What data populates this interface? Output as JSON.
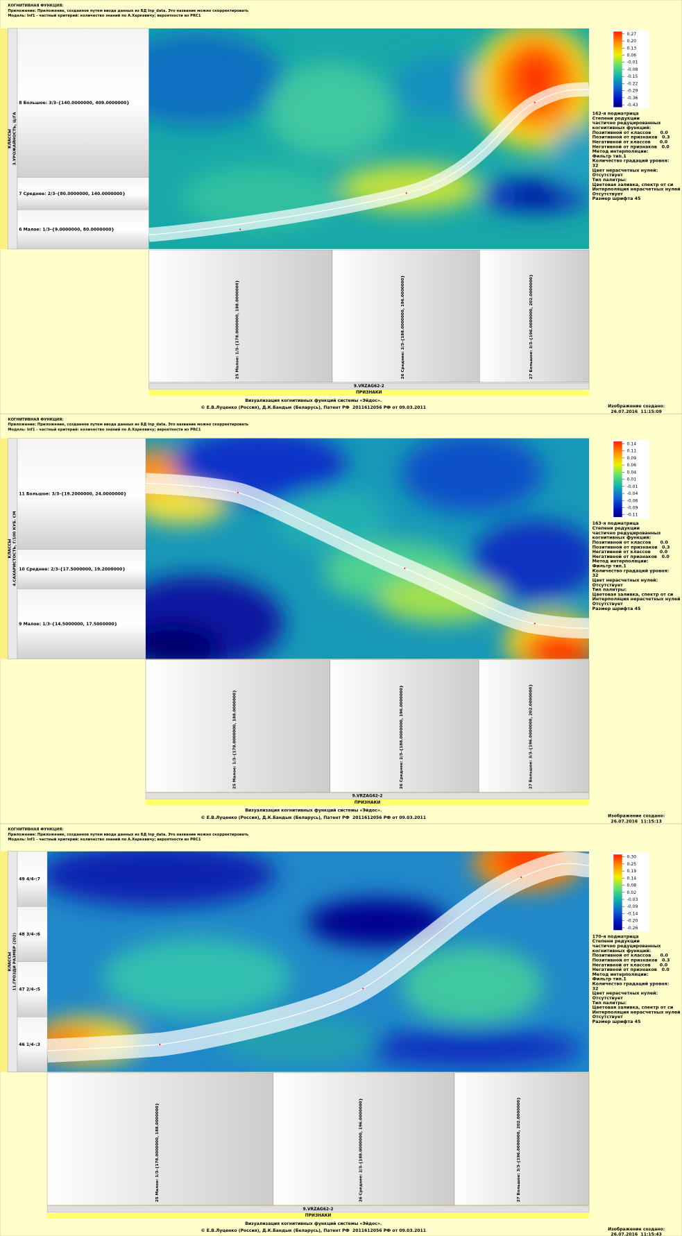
{
  "panels": [
    {
      "header": {
        "title": "КОГНИТИВНАЯ ФУНКЦИЯ:",
        "app": "Приложение: Приложение, созданное путем ввода данных из БД Inp_data. Это название можно скорректировать",
        "model": "Модель: Inf1 - частный критерий: количество знаний по А.Харкевичу; вероятности из PRC1"
      },
      "class_axis": {
        "title": "КЛАССЫ",
        "name": "3.УРОЖАЙНОСТЬ, Ц/ГА"
      },
      "classes": [
        "8 Большое: 3/3-{140.0000000, 409.0000000}",
        "7 Среднее: 2/3-{80.0000000, 140.0000000}",
        "6 Малое: 1/3-{9.0000000, 80.0000000}"
      ],
      "features": [
        "25 Малое: 1/3-{178.0000000, 188.0000000}",
        "26 Среднее: 2/3-{188.0000000, 196.0000000}",
        "27 Большое: 3/3-{196.0000000, 202.0000000}"
      ],
      "feature_group": "9.VRZAG62-2",
      "feature_axis": "ПРИЗНАКИ",
      "legend": [
        "0.27",
        "0.20",
        "0.13",
        "0.06",
        "-0.01",
        "-0.08",
        "-0.15",
        "-0.22",
        "-0.29",
        "-0.36",
        "-0.43"
      ],
      "info": [
        "162-я подматрица",
        "Степени редукции",
        "частично редуцированных",
        "когнитивных функций:",
        "Позитивной от классов      0.0",
        "Позитивной от признаков   0.3",
        "Негативной от классов      0.0",
        "Негативной от признаков   0.0",
        "Метод интерполяции:",
        "Фильтр тип.1",
        "Количество градаций уровня:",
        "32",
        "Цвет нерасчетных нулей:",
        "Отсутствует",
        "Тип палитры:",
        "Цветовая заливка, спектр от си",
        "Интерполяция нерасчетных нулей",
        "Отсутствует",
        "Размер шрифта 45"
      ],
      "footer": [
        "Визуализация когнитивных функций системы «Эйдос».",
        "© Е.В.Луценко (Россия), Д.К.Бандык (Беларусь), Патент РФ  2011612056 РФ от 09.03.2011"
      ],
      "created": [
        "Изображение создано:",
        "26.07.2016  11:15:09"
      ]
    },
    {
      "header": {
        "title": "КОГНИТИВНАЯ ФУНКЦИЯ:",
        "app": "Приложение: Приложение, созданное путем ввода данных из БД Inp_data. Это название можно скорректировать",
        "model": "Модель: Inf1 - частный критерий: количество знаний по А.Харкевичу; вероятности из PRC1"
      },
      "class_axis": {
        "title": "КЛАССЫ",
        "name": "4.САХАРИСТОСТЬ, Г/100 КУБ. СМ"
      },
      "classes": [
        "11 Большое: 3/3-{19.2000000, 24.0000000}",
        "10 Среднее: 2/3-{17.5000000, 19.2000000}",
        "9 Малое: 1/3-{14.5000000, 17.5000000}"
      ],
      "features": [
        "25 Малое: 1/3-{178.0000000, 188.0000000}",
        "26 Среднее: 2/3-{188.0000000, 196.0000000}",
        "27 Большое: 3/3-{196.0000000, 202.0000000}"
      ],
      "feature_group": "9.VRZAG62-2",
      "feature_axis": "ПРИЗНАКИ",
      "legend": [
        "0.14",
        "0.11",
        "0.09",
        "0.06",
        "0.04",
        "0.01",
        "-0.01",
        "-0.04",
        "-0.06",
        "-0.09",
        "-0.11"
      ],
      "info": [
        "163-я подматрица",
        "Степени редукции",
        "частично редуцированных",
        "когнитивных функций:",
        "Позитивной от классов      0.0",
        "Позитивной от признаков   0.3",
        "Негативной от классов      0.0",
        "Негативной от признаков   0.0",
        "Метод интерполяции:",
        "Фильтр тип.1",
        "Количество градаций уровня:",
        "32",
        "Цвет нерасчетных нулей:",
        "Отсутствует",
        "Тип палитры:",
        "Цветовая заливка, спектр от си",
        "Интерполяция нерасчетных нулей",
        "Отсутствует",
        "Размер шрифта 45"
      ],
      "footer": [
        "Визуализация когнитивных функций системы «Эйдос».",
        "© Е.В.Луценко (Россия), Д.К.Бандык (Беларусь), Патент РФ  2011612056 РФ от 09.03.2011"
      ],
      "created": [
        "Изображение создано:",
        "26.07.2016  11:15:13"
      ]
    },
    {
      "header": {
        "title": "КОГНИТИВНАЯ ФУНКЦИЯ:",
        "app": "Приложение: Приложение, созданное путем ввода данных из БД Inp_data. Это название можно скорректировать",
        "model": "Модель: Inf1 - частный критерий: количество знаний по А.Харкевичу; вероятности из PRC1"
      },
      "class_axis": {
        "title": "КЛАССЫ",
        "name": "11.ГРОЗДИ РАЗМЕР (202)"
      },
      "classes": [
        "49 4/4-:7",
        "48 3/4-:6",
        "47 2/4-:5",
        "46 1/4-:3"
      ],
      "features": [
        "25 Малое: 1/3-{178.0000000, 188.0000000}",
        "26 Среднее: 2/3-{188.0000000, 196.0000000}",
        "27 Большое: 3/3-{196.0000000, 202.0000000}"
      ],
      "feature_group": "9.VRZAG62-2",
      "feature_axis": "ПРИЗНАКИ",
      "legend": [
        "0.30",
        "0.25",
        "0.19",
        "0.14",
        "0.08",
        "0.02",
        "-0.03",
        "-0.09",
        "-0.14",
        "-0.20",
        "-0.26"
      ],
      "info": [
        "170-я подматрица",
        "Степени редукции",
        "частично редуцированных",
        "когнитивных функций:",
        "Позитивной от классов      0.0",
        "Позитивной от признаков   0.3",
        "Негативной от классов      0.0",
        "Негативной от признаков   0.0",
        "Метод интерполяции:",
        "Фильтр тип.1",
        "Количество градаций уровня:",
        "32",
        "Цвет нерасчетных нулей:",
        "Отсутствует",
        "Тип палитры:",
        "Цветовая заливка, спектр от си",
        "Интерполяция нерасчетных нулей",
        "Отсутствует",
        "Размер шрифта 45"
      ],
      "footer": [
        "Визуализация когнитивных функций системы «Эйдос».",
        "© Е.В.Луценко (Россия), Д.К.Бандык (Беларусь), Патент РФ  2011612056 РФ от 09.03.2011"
      ],
      "created": [
        "Изображение создано:",
        "26.07.2016  11:15:43"
      ]
    }
  ]
}
